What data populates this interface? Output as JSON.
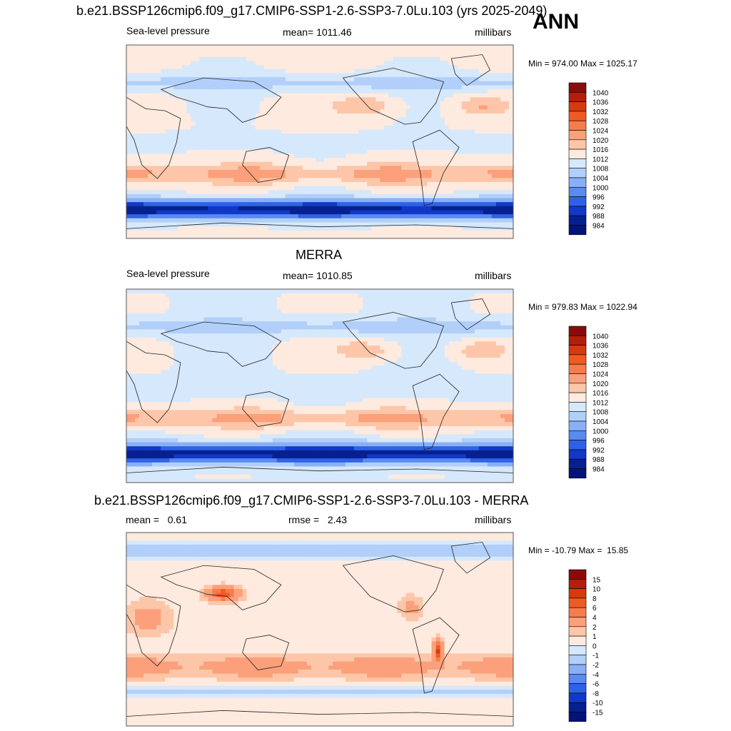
{
  "page": {
    "season": "ANN"
  },
  "chart_data": [
    {
      "type": "heatmap",
      "title": "b.e21.BSSP126cmip6.f09_g17.CMIP6-SSP1-2.6-SSP3-7.0Lu.103 (yrs 2025-2049)",
      "left_label": "Sea-level pressure",
      "center_label": "mean= 1011.46",
      "right_label": "millibars",
      "minmax": "Min = 974.00 Max = 1025.17",
      "colorbar": {
        "levels": [
          "1040",
          "1036",
          "1032",
          "1028",
          "1024",
          "1020",
          "1016",
          "1012",
          "1008",
          "1004",
          "1000",
          "996",
          "992",
          "988",
          "984"
        ],
        "colors": [
          "#8a0b0b",
          "#b31f0a",
          "#d63a0d",
          "#f05a23",
          "#f77c4b",
          "#fba07a",
          "#fdc6a9",
          "#feeadf",
          "#d6e8fb",
          "#b1cffa",
          "#88b0f7",
          "#5a8af2",
          "#2e62e6",
          "#1138c6",
          "#06208f",
          "#03137a"
        ]
      }
    },
    {
      "type": "heatmap",
      "title": "MERRA",
      "left_label": "Sea-level pressure",
      "center_label": "mean= 1010.85",
      "right_label": "millibars",
      "minmax": "Min = 979.83 Max = 1022.94",
      "colorbar": {
        "levels": [
          "1040",
          "1036",
          "1032",
          "1028",
          "1024",
          "1020",
          "1016",
          "1012",
          "1008",
          "1004",
          "1000",
          "996",
          "992",
          "988",
          "984"
        ],
        "colors": [
          "#8a0b0b",
          "#b31f0a",
          "#d63a0d",
          "#f05a23",
          "#f77c4b",
          "#fba07a",
          "#fdc6a9",
          "#feeadf",
          "#d6e8fb",
          "#b1cffa",
          "#88b0f7",
          "#5a8af2",
          "#2e62e6",
          "#1138c6",
          "#06208f",
          "#03137a"
        ]
      }
    },
    {
      "type": "heatmap",
      "title": "b.e21.BSSP126cmip6.f09_g17.CMIP6-SSP1-2.6-SSP3-7.0Lu.103 - MERRA",
      "left_label": "mean =   0.61",
      "center_label": "rmse =   2.43",
      "right_label": "millibars",
      "minmax": "Min = -10.79 Max =  15.85",
      "colorbar": {
        "levels": [
          "15",
          "10",
          "8",
          "6",
          "4",
          "2",
          "1",
          "0",
          "-1",
          "-2",
          "-4",
          "-6",
          "-8",
          "-10",
          "-15"
        ],
        "colors": [
          "#8a0b0b",
          "#b31f0a",
          "#d63a0d",
          "#f05a23",
          "#f77c4b",
          "#fba07a",
          "#fdc6a9",
          "#feeadf",
          "#d6e8fb",
          "#b1cffa",
          "#88b0f7",
          "#5a8af2",
          "#2e62e6",
          "#1138c6",
          "#06208f",
          "#03137a"
        ]
      }
    }
  ]
}
